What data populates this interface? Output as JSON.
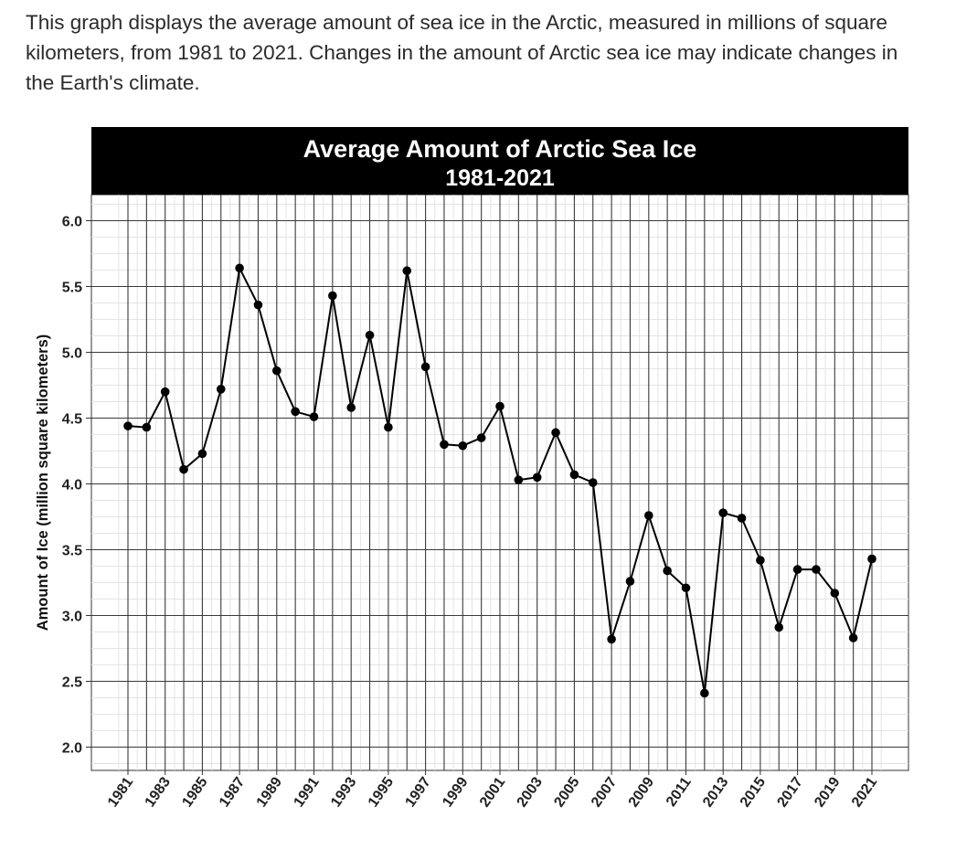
{
  "intro_text": "This graph displays the average amount of sea ice in the Arctic, measured in millions of square kilometers, from 1981 to 2021. Changes in the amount of Arctic sea ice may indicate changes in the Earth's climate.",
  "chart_data": {
    "type": "line",
    "title": "Average Amount of Arctic Sea Ice",
    "subtitle": "1981-2021",
    "xlabel": "",
    "ylabel": "Amount of Ice (million square kilometers)",
    "ylim": [
      2.0,
      6.0
    ],
    "xlim": [
      1981,
      2021
    ],
    "y_ticks": [
      "2.0",
      "2.5",
      "3.0",
      "3.5",
      "4.0",
      "4.5",
      "5.0",
      "5.5",
      "6.0"
    ],
    "x_ticks": [
      "1981",
      "1983",
      "1985",
      "1987",
      "1989",
      "1991",
      "1993",
      "1995",
      "1997",
      "1999",
      "2001",
      "2003",
      "2005",
      "2007",
      "2009",
      "2011",
      "2013",
      "2015",
      "2017",
      "2019",
      "2021"
    ],
    "grid": true,
    "x": [
      1981,
      1982,
      1983,
      1984,
      1985,
      1986,
      1987,
      1988,
      1989,
      1990,
      1991,
      1992,
      1993,
      1994,
      1995,
      1996,
      1997,
      1998,
      1999,
      2000,
      2001,
      2002,
      2003,
      2004,
      2005,
      2006,
      2007,
      2008,
      2009,
      2010,
      2011,
      2012,
      2013,
      2014,
      2015,
      2016,
      2017,
      2018,
      2019,
      2020,
      2021
    ],
    "series": [
      {
        "values": [
          4.44,
          4.43,
          4.7,
          4.11,
          4.23,
          4.72,
          5.64,
          5.36,
          4.86,
          4.55,
          4.51,
          5.43,
          4.58,
          5.13,
          4.43,
          5.62,
          4.89,
          4.3,
          4.29,
          4.35,
          4.59,
          4.03,
          4.05,
          4.39,
          4.07,
          4.01,
          2.82,
          3.26,
          3.76,
          3.34,
          3.21,
          2.41,
          3.78,
          3.74,
          3.42,
          2.91,
          3.35,
          3.35,
          3.17,
          2.83,
          3.43
        ]
      }
    ]
  }
}
